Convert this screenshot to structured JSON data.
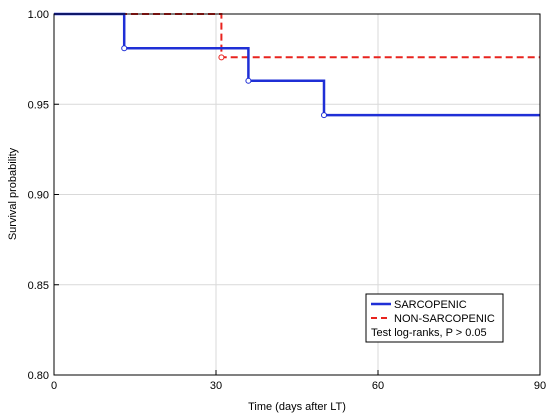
{
  "chart_data": {
    "type": "line",
    "xlabel": "Time (days after LT)",
    "ylabel": "Survival probability",
    "xlim": [
      0,
      90
    ],
    "ylim": [
      0.8,
      1.0
    ],
    "x_ticks": [
      0,
      30,
      60,
      90
    ],
    "x_tick_labels": [
      "0",
      "30",
      "60",
      "90"
    ],
    "y_ticks": [
      0.8,
      0.85,
      0.9,
      0.95,
      1.0
    ],
    "y_tick_labels": [
      "0.80",
      "0.85",
      "0.90",
      "0.95",
      "1.00"
    ],
    "grid": true,
    "legend_position": "bottom-right",
    "series": [
      {
        "name": "SARCOPENIC",
        "color": "#1f2fd6",
        "style": "solid",
        "x": [
          0,
          13,
          13,
          36,
          36,
          50,
          50,
          90
        ],
        "y": [
          1.0,
          1.0,
          0.981,
          0.981,
          0.963,
          0.963,
          0.944,
          0.944
        ],
        "censor_marks": [
          [
            13,
            0.981
          ],
          [
            36,
            0.963
          ],
          [
            50,
            0.944
          ]
        ]
      },
      {
        "name": "NON-SARCOPENIC",
        "color": "#e8231e",
        "style": "dashed",
        "x": [
          0,
          31,
          31,
          90
        ],
        "y": [
          1.0,
          1.0,
          0.976,
          0.976
        ],
        "censor_marks": [
          [
            31,
            0.976
          ]
        ]
      }
    ],
    "annotation": "Test log-ranks, P > 0.05"
  }
}
